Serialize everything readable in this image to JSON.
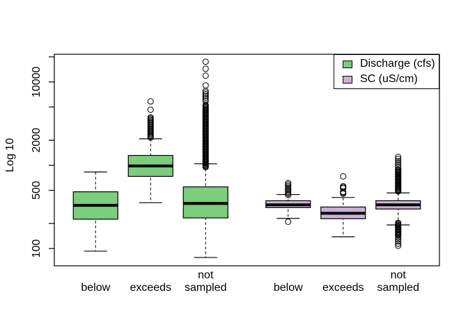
{
  "figure": {
    "background": "#FFFFFF",
    "ylabel": "Log 10",
    "frame_color": "#000000"
  },
  "legend": {
    "items": [
      {
        "label": "Discharge (cfs)",
        "color": "#7CCD7C"
      },
      {
        "label": "SC (uS/cm)",
        "color": "#CAB2D6"
      }
    ]
  },
  "chart_data": {
    "type": "boxplot",
    "title": "",
    "xlabel": "",
    "ylabel": "Log 10",
    "y_scale": "log10",
    "ylim": [
      62,
      21500
    ],
    "xlim": [
      0.25,
      7.25
    ],
    "grid": false,
    "legend_position": "top-right",
    "y_ticks": [
      {
        "value": 100,
        "label": "100"
      },
      {
        "value": 200,
        "label": ""
      },
      {
        "value": 500,
        "label": "500"
      },
      {
        "value": 1000,
        "label": ""
      },
      {
        "value": 2000,
        "label": "2000"
      },
      {
        "value": 5000,
        "label": ""
      },
      {
        "value": 10000,
        "label": "10000"
      },
      {
        "value": 20000,
        "label": ""
      }
    ],
    "series": [
      {
        "name": "Discharge (cfs)",
        "color": "#7CCD7C"
      },
      {
        "name": "SC (uS/cm)",
        "color": "#CAB2D6"
      }
    ],
    "x_category_labels": [
      {
        "at": 1,
        "lines": [
          "below"
        ]
      },
      {
        "at": 2,
        "lines": [
          "exceeds"
        ]
      },
      {
        "at": 3,
        "lines": [
          "not",
          "sampled"
        ]
      },
      {
        "at": 4.5,
        "lines": [
          "below"
        ]
      },
      {
        "at": 5.5,
        "lines": [
          "exceeds"
        ]
      },
      {
        "at": 6.5,
        "lines": [
          "not",
          "sampled"
        ]
      }
    ],
    "boxes": [
      {
        "series": 0,
        "category": "below",
        "at": 1,
        "whisker_low": 93,
        "q1": 225,
        "median": 330,
        "q3": 480,
        "whisker_high": 830,
        "outliers": [],
        "outlier_runs": []
      },
      {
        "series": 0,
        "category": "exceeds",
        "at": 2,
        "whisker_low": 355,
        "q1": 735,
        "median": 980,
        "q3": 1310,
        "whisker_high": 2075,
        "outliers": [
          4640,
          5850
        ],
        "outlier_runs": [
          {
            "from": 2150,
            "to": 3760,
            "count": 20
          }
        ]
      },
      {
        "series": 0,
        "category": "not sampled",
        "at": 3,
        "whisker_low": 78,
        "q1": 233,
        "median": 348,
        "q3": 550,
        "whisker_high": 1040,
        "outliers": [
          9100,
          11900,
          14400,
          17500
        ],
        "outlier_runs": [
          {
            "from": 950,
            "to": 5300,
            "count": 70
          },
          {
            "from": 5900,
            "to": 7800,
            "count": 7
          }
        ]
      },
      {
        "series": 1,
        "category": "below",
        "at": 4.5,
        "whisker_low": 230,
        "q1": 310,
        "median": 335,
        "q3": 375,
        "whisker_high": 445,
        "outliers": [
          210
        ],
        "outlier_runs": [
          {
            "from": 440,
            "to": 610,
            "count": 9
          }
        ]
      },
      {
        "series": 1,
        "category": "exceeds",
        "at": 5.5,
        "whisker_low": 138,
        "q1": 228,
        "median": 265,
        "q3": 315,
        "whisker_high": 410,
        "outliers": [
          735,
          560,
          545,
          530,
          480,
          468,
          457
        ],
        "outlier_runs": []
      },
      {
        "series": 1,
        "category": "not sampled",
        "at": 6.5,
        "whisker_low": 192,
        "q1": 298,
        "median": 335,
        "q3": 375,
        "whisker_high": 465,
        "outliers": [],
        "outlier_runs": [
          {
            "from": 485,
            "to": 890,
            "count": 26
          },
          {
            "from": 950,
            "to": 1260,
            "count": 6
          },
          {
            "from": 147,
            "to": 203,
            "count": 14
          },
          {
            "from": 108,
            "to": 144,
            "count": 6
          }
        ]
      }
    ]
  }
}
